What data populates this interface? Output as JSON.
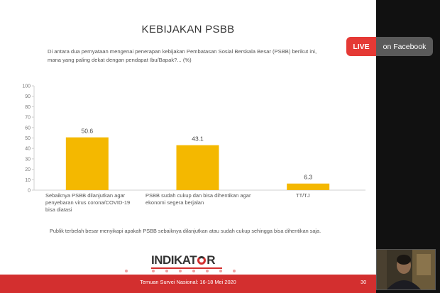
{
  "slide": {
    "title": "KEBIJAKAN PSBB",
    "question": "Di antara dua pernyataan mengenai penerapan kebijakan Pembatasan Sosial Berskala Besar (PSBB) berikut ini, mana yang paling dekat dengan pendapat Ibu/Bapak?... (%)",
    "note": "Publik terbelah besar menyikapi apakah PSBB sebaiknya dilanjutkan atau sudah cukup sehingga bisa dihentikan saja.",
    "logo_a": "INDIKAT",
    "logo_b": "R",
    "footer": "Temuan Survei Nasional: 16-18 Mei 2020",
    "page_number": "30",
    "dot_count": 9,
    "active_dot": 1
  },
  "live": {
    "label": "LIVE",
    "platform": "on Facebook"
  },
  "colors": {
    "bar": "#f4b800",
    "brand_red": "#d32f2f",
    "live_red": "#e53935"
  },
  "chart_data": {
    "type": "bar",
    "categories": [
      "Sebaiknya PSBB dilanjutkan agar penyebaran virus corona/COVID-19 bisa diatasi",
      "PSBB sudah cukup dan bisa dihentikan agar ekonomi segera berjalan",
      "TT/TJ"
    ],
    "values": [
      50.6,
      43.1,
      6.3
    ],
    "data_labels": [
      "50.6",
      "43.1",
      "6.3"
    ],
    "ylim": [
      0,
      100
    ],
    "yticks": [
      0,
      10,
      20,
      30,
      40,
      50,
      60,
      70,
      80,
      90,
      100
    ],
    "title": "",
    "xlabel": "",
    "ylabel": "",
    "grid": false
  }
}
